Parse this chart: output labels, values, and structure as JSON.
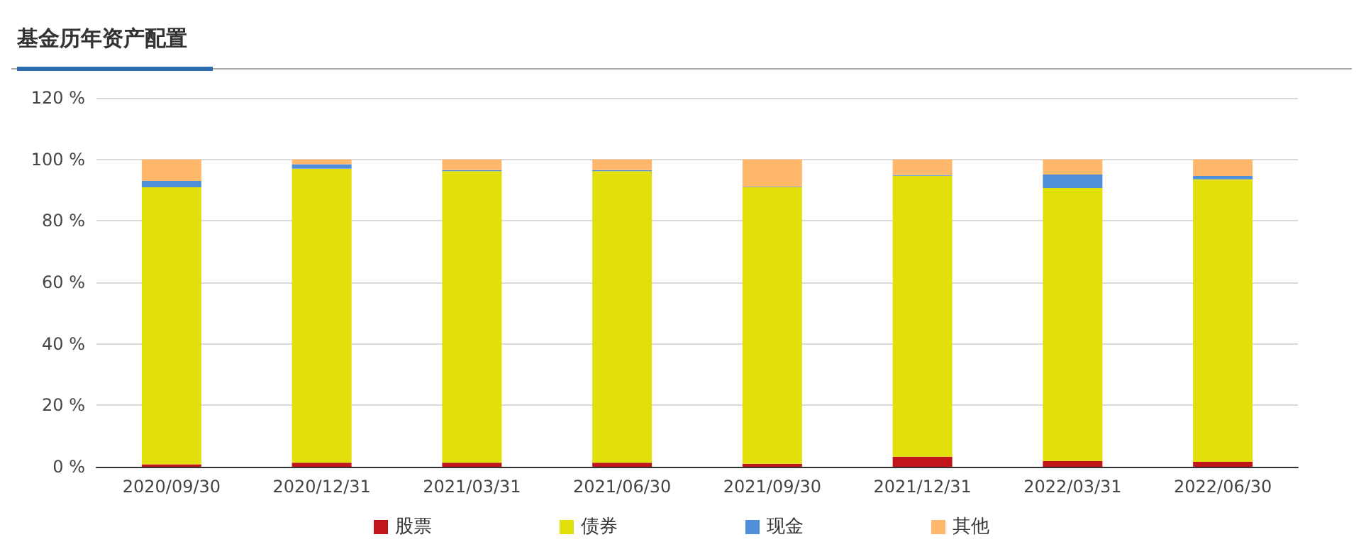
{
  "chart_data": {
    "type": "bar",
    "title": "基金历年资产配置",
    "stacked": true,
    "categories": [
      "2020/09/30",
      "2020/12/31",
      "2021/03/31",
      "2021/06/30",
      "2021/09/30",
      "2021/12/31",
      "2022/03/31",
      "2022/06/30"
    ],
    "series": [
      {
        "name": "股票",
        "color": "#c0161a",
        "values": [
          0.8,
          1.3,
          1.3,
          1.3,
          1.0,
          3.3,
          1.9,
          1.6
        ]
      },
      {
        "name": "债券",
        "color": "#e2df0a",
        "values": [
          90.1,
          95.7,
          94.9,
          94.9,
          89.9,
          91.4,
          88.8,
          91.9
        ]
      },
      {
        "name": "现金",
        "color": "#4f8fda",
        "values": [
          2.1,
          1.4,
          0.3,
          0.3,
          0.2,
          0.2,
          4.4,
          1.1
        ]
      },
      {
        "name": "其他",
        "color": "#ffb86b",
        "values": [
          7.0,
          1.6,
          3.5,
          3.5,
          8.9,
          5.1,
          4.9,
          5.4
        ]
      }
    ],
    "ylim": [
      0,
      120
    ],
    "yticks": [
      {
        "value": 0,
        "label": "0 %"
      },
      {
        "value": 20,
        "label": "20 %"
      },
      {
        "value": 40,
        "label": "40 %"
      },
      {
        "value": 60,
        "label": "60 %"
      },
      {
        "value": 80,
        "label": "80 %"
      },
      {
        "value": 100,
        "label": "100 %"
      },
      {
        "value": 120,
        "label": "120 %"
      }
    ],
    "grid": "y",
    "legend": "bottom"
  }
}
